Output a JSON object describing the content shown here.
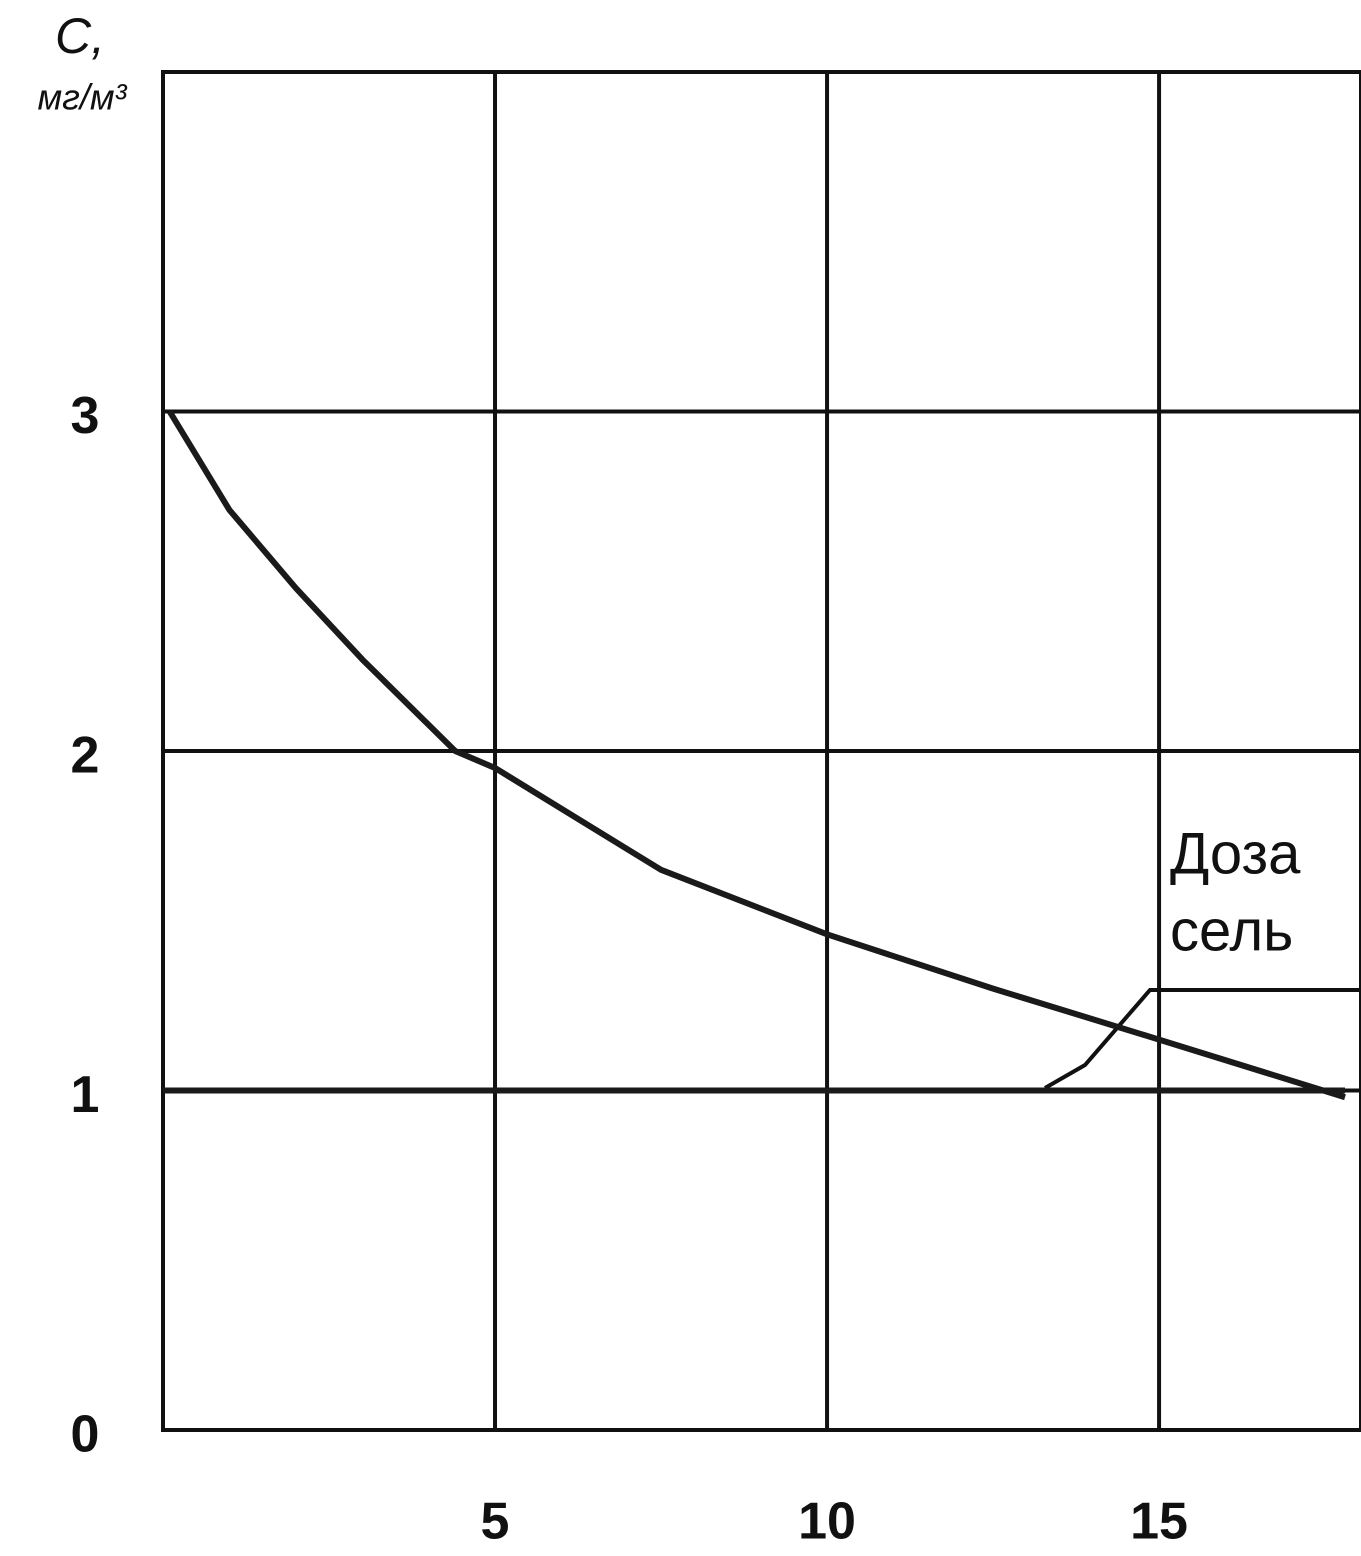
{
  "chart_data": {
    "type": "line",
    "y_label": "С,",
    "y_unit": "мг/м³",
    "annotation": [
      "Доза",
      "сель"
    ],
    "series": [
      {
        "color": "#1a1a1a",
        "x": [
          0.1,
          1,
          2,
          3,
          4.4,
          5,
          7.5,
          10,
          12.5,
          15,
          17.8
        ],
        "values": [
          3,
          2.71,
          2.48,
          2.27,
          2,
          1.95,
          1.65,
          1.46,
          1.3,
          1.15,
          0.98
        ]
      },
      {
        "color": "#1a1a1a",
        "x": [
          0,
          17.8
        ],
        "values": [
          1,
          1
        ]
      }
    ],
    "xlim": [
      0,
      17.8
    ],
    "xticks": [
      5,
      10,
      15
    ],
    "ylim": [
      0,
      4
    ],
    "yticks": [
      0,
      1,
      2,
      3
    ],
    "grid": true
  }
}
